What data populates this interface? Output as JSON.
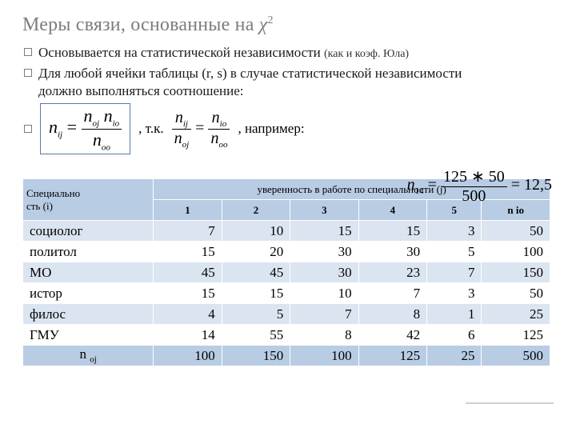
{
  "title_prefix": "Меры связи, основанные на  ",
  "title_symbol": "χ",
  "title_exp": "2",
  "bullet1_main": "Основывается на статистической независимости ",
  "bullet1_sub": "(как и коэф. Юла)",
  "bullet2_line1": "Для любой ячейки  таблицы (r, s)   в случае статистической независимости",
  "bullet2_line2": "должно выполняться соотношение:",
  "formula_lhs_var": "n",
  "formula_lhs_sub": "ij",
  "formula_eq": " = ",
  "formula_num_a": "n",
  "formula_num_a_sub": "oj",
  "formula_num_space": " ",
  "formula_num_b": "n",
  "formula_num_b_sub": "io",
  "formula_den": "n",
  "formula_den_sub": "oo",
  "tk": ", т.к.",
  "frac2_num_a": "n",
  "frac2_num_a_sub": "ij",
  "frac2_den_a": "n",
  "frac2_den_a_sub": "oj",
  "eq2": " = ",
  "frac3_num_a": "n",
  "frac3_num_a_sub": "io",
  "frac3_den_a": "n",
  "frac3_den_a_sub": "oo",
  "naprimer": ", например:",
  "ex_lhs": "n",
  "ex_lhs_sub": "14",
  "ex_eq": " = ",
  "ex_num": "125 ∗ 50",
  "ex_den": "500",
  "ex_eq2": " = ",
  "ex_res": "12,5",
  "table": {
    "corner_line1": "Специально",
    "corner_line2": "сть (i)",
    "header_span": "уверенность в работе по специальности (j)",
    "cols": [
      "1",
      "2",
      "3",
      "4",
      "5",
      "n io"
    ],
    "rows": [
      {
        "label": "социолог",
        "vals": [
          "7",
          "10",
          "15",
          "15",
          "3",
          "50"
        ]
      },
      {
        "label": "политол",
        "vals": [
          "15",
          "20",
          "30",
          "30",
          "5",
          "100"
        ]
      },
      {
        "label": "МО",
        "vals": [
          "45",
          "45",
          "30",
          "23",
          "7",
          "150"
        ]
      },
      {
        "label": "истор",
        "vals": [
          "15",
          "15",
          "10",
          "7",
          "3",
          "50"
        ]
      },
      {
        "label": "филос",
        "vals": [
          "4",
          "5",
          "7",
          "8",
          "1",
          "25"
        ]
      },
      {
        "label": "ГМУ",
        "vals": [
          "14",
          "55",
          "8",
          "42",
          "6",
          "125"
        ]
      }
    ],
    "total_label_a": "n ",
    "total_label_b": "oj",
    "totals": [
      "100",
      "150",
      "100",
      "125",
      "25",
      "500"
    ]
  },
  "colors": {
    "header_bg": "#b8cce4",
    "band_light": "#dbe5f1",
    "band_white": "#ffffff",
    "title_gray": "#7d7d7d"
  }
}
